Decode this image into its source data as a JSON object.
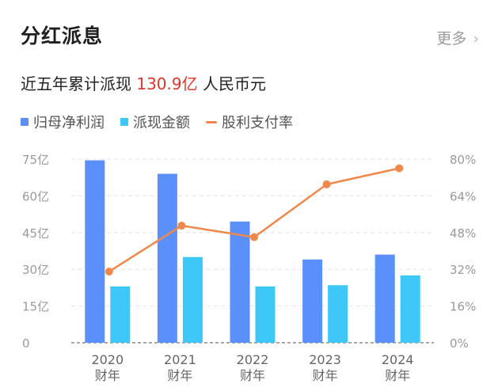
{
  "header": {
    "title": "分红派息",
    "more_label": "更多",
    "more_icon": "chevron-right-icon"
  },
  "summary": {
    "prefix": "近五年累计派现",
    "amount": "130.9亿",
    "suffix": "人民币元"
  },
  "colors": {
    "bar_profit": "#5b8ff9",
    "bar_dividend": "#3ec8f7",
    "line_ratio": "#f0884c",
    "amount": "#e0352b"
  },
  "chart_data": {
    "type": "bar",
    "categories": [
      "2020",
      "2021",
      "2022",
      "2023",
      "2024"
    ],
    "category_sublabel": "财年",
    "series": [
      {
        "name": "归母净利润",
        "type": "bar",
        "axis": "left",
        "values": [
          74.5,
          69,
          49.5,
          34,
          36
        ]
      },
      {
        "name": "派现金额",
        "type": "bar",
        "axis": "left",
        "values": [
          23,
          35,
          23,
          23.5,
          27.5
        ]
      },
      {
        "name": "股利支付率",
        "type": "line",
        "axis": "right",
        "values": [
          31,
          51,
          46,
          69,
          76
        ]
      }
    ],
    "y_left": {
      "min": 0,
      "max": 75,
      "ticks": [
        0,
        15,
        30,
        45,
        60,
        75
      ],
      "tick_labels": [
        "0",
        "15亿",
        "30亿",
        "45亿",
        "60亿",
        "75亿"
      ]
    },
    "y_right": {
      "min": 0,
      "max": 80,
      "ticks": [
        0,
        16,
        32,
        48,
        64,
        80
      ],
      "tick_labels": [
        "0%",
        "16%",
        "32%",
        "48%",
        "64%",
        "80%"
      ]
    },
    "grid": true,
    "legend": "top-left"
  }
}
